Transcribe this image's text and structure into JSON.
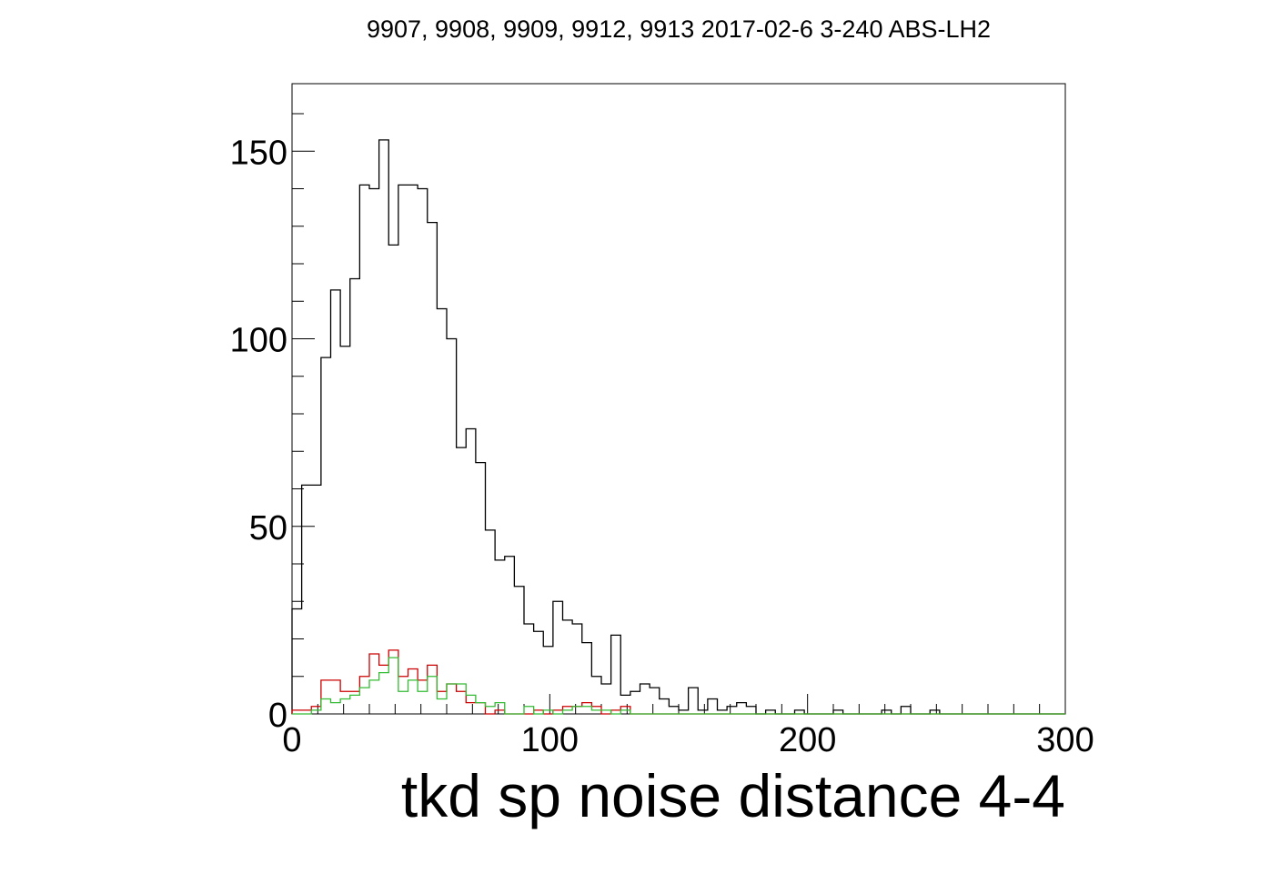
{
  "chart_data": {
    "type": "histogram",
    "title": "9907, 9908, 9909, 9912, 9913 2017-02-6 3-240 ABS-LH2",
    "xlabel": "tkd sp noise distance 4-4",
    "ylabel": "",
    "xlim": [
      0,
      300
    ],
    "ylim": [
      0,
      168
    ],
    "bin_width": 3.75,
    "x_ticks": [
      0,
      100,
      200,
      300
    ],
    "x_tick_labels": [
      "0",
      "100",
      "200",
      "300"
    ],
    "y_ticks": [
      0,
      50,
      100,
      150
    ],
    "y_tick_labels": [
      "0",
      "50",
      "100",
      "150"
    ],
    "grid": false,
    "legend": "none",
    "series": [
      {
        "color": "#000000",
        "values": [
          28,
          61,
          61,
          95,
          113,
          98,
          116,
          141,
          140,
          153,
          125,
          141,
          141,
          140,
          131,
          108,
          100,
          71,
          76,
          67,
          49,
          41,
          42,
          34,
          24,
          22,
          18,
          30,
          25,
          24,
          19,
          10,
          8,
          21,
          5,
          6,
          8,
          7,
          4,
          2,
          1,
          7,
          1,
          4,
          1,
          2,
          3,
          2,
          0,
          1,
          0,
          0,
          1,
          0,
          0,
          0,
          1,
          0,
          0,
          0,
          0,
          1,
          0,
          2,
          0,
          0,
          1,
          0,
          0,
          0,
          0,
          0,
          0,
          0,
          0,
          0,
          0,
          0,
          0,
          0
        ]
      },
      {
        "color": "#cc0000",
        "values": [
          1,
          1,
          2,
          9,
          9,
          6,
          6,
          10,
          16,
          13,
          17,
          10,
          12,
          9,
          13,
          6,
          8,
          6,
          3,
          3,
          0,
          1,
          0,
          0,
          0,
          1,
          0,
          1,
          2,
          2,
          3,
          2,
          0,
          1,
          2,
          0,
          0,
          0,
          0,
          0,
          0,
          0,
          0,
          0,
          0,
          0,
          0,
          0,
          0,
          0,
          0,
          0,
          0,
          0,
          0,
          0,
          0,
          0,
          0,
          0,
          0,
          0,
          0,
          0,
          0,
          0,
          0,
          0,
          0,
          0,
          0,
          0,
          0,
          0,
          0,
          0,
          0,
          0,
          0,
          0
        ]
      },
      {
        "color": "#33bb33",
        "values": [
          0,
          0,
          1,
          4,
          3,
          4,
          5,
          7,
          9,
          11,
          15,
          6,
          9,
          6,
          10,
          4,
          8,
          8,
          5,
          3,
          2,
          3,
          0,
          0,
          2,
          0,
          1,
          0,
          1,
          2,
          2,
          1,
          1,
          0,
          1,
          0,
          0,
          0,
          0,
          0,
          0,
          0,
          0,
          0,
          0,
          0,
          0,
          0,
          0,
          0,
          0,
          0,
          0,
          0,
          0,
          0,
          0,
          0,
          0,
          0,
          0,
          0,
          0,
          0,
          0,
          0,
          0,
          0,
          0,
          0,
          0,
          0,
          0,
          0,
          0,
          0,
          0,
          0,
          0,
          0
        ]
      }
    ]
  }
}
